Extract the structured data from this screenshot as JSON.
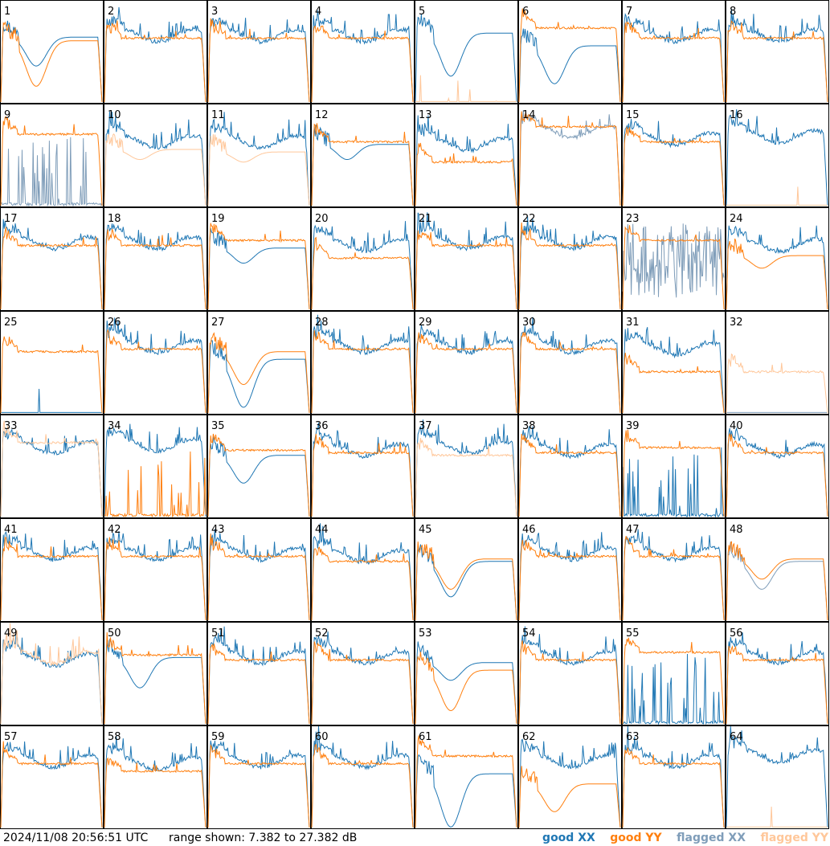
{
  "footer": {
    "timestamp": "2024/11/08 20:56:51 UTC",
    "range_text": "range shown: 7.382 to 27.382 dB"
  },
  "legend": [
    {
      "name": "good XX",
      "color": "#1f77b4"
    },
    {
      "name": "good YY",
      "color": "#ff7f0e"
    },
    {
      "name": "flagged XX",
      "color": "#7f9db9"
    },
    {
      "name": "flagged YY",
      "color": "#ffc79a"
    }
  ],
  "chart_data": {
    "type": "line",
    "ylim": [
      7.382,
      27.382
    ],
    "yunit": "dB",
    "grid": false,
    "legend_placement": "bottom-right",
    "panel_labels": [
      "1",
      "2",
      "3",
      "4",
      "5",
      "6",
      "7",
      "8",
      "9",
      "10",
      "11",
      "12",
      "13",
      "14",
      "15",
      "16",
      "17",
      "18",
      "19",
      "20",
      "21",
      "22",
      "23",
      "24",
      "25",
      "26",
      "27",
      "28",
      "29",
      "30",
      "31",
      "32",
      "33",
      "34",
      "35",
      "36",
      "37",
      "38",
      "39",
      "40",
      "41",
      "42",
      "43",
      "44",
      "45",
      "46",
      "47",
      "48",
      "49",
      "50",
      "51",
      "52",
      "53",
      "54",
      "55",
      "56",
      "57",
      "58",
      "59",
      "60",
      "61",
      "62",
      "63",
      "64"
    ],
    "panels": {
      "1": {
        "xx": {
          "state": "good",
          "shape": "dip",
          "level": 20.2,
          "dip": 14.5
        },
        "yy": {
          "state": "good",
          "shape": "dip",
          "level": 19.5,
          "dip": 10.5
        }
      },
      "5": {
        "xx": {
          "state": "good",
          "shape": "dip",
          "level": 21.0,
          "dip": 12.5
        },
        "yy": {
          "state": "flagged",
          "shape": "low"
        }
      },
      "6": {
        "xx": {
          "state": "good",
          "shape": "dip",
          "level": 18.5,
          "dip": 11.0
        },
        "yy": {
          "state": "good",
          "shape": "flat",
          "level": 22.0
        }
      },
      "9": {
        "xx": {
          "state": "flagged",
          "shape": "spiky_low"
        },
        "yy": {
          "state": "good",
          "shape": "flat",
          "level": 21.5
        }
      },
      "10": {
        "xx": {
          "state": "good",
          "shape": "bumpy",
          "level": 20.0
        },
        "yy": {
          "state": "flagged",
          "shape": "dip",
          "level": 18.5,
          "dip": 16.5
        }
      },
      "11": {
        "xx": {
          "state": "good",
          "shape": "bumpy",
          "level": 20.0
        },
        "yy": {
          "state": "flagged",
          "shape": "dip",
          "level": 18.0,
          "dip": 16.0
        }
      },
      "12": {
        "xx": {
          "state": "good",
          "shape": "dip",
          "level": 19.5,
          "dip": 16.5
        },
        "yy": {
          "state": "good",
          "shape": "flat",
          "level": 20.0
        }
      },
      "13": {
        "xx": {
          "state": "good",
          "shape": "bumpy",
          "level": 19.5
        },
        "yy": {
          "state": "good",
          "shape": "flat",
          "level": 16.0
        }
      },
      "14": {
        "xx": {
          "state": "flagged",
          "shape": "bumpy",
          "level": 22.0
        },
        "yy": {
          "state": "good",
          "shape": "flat",
          "level": 23.0
        }
      },
      "16": {
        "xx": {
          "state": "good",
          "shape": "bumpy",
          "level": 21.0
        },
        "yy": {
          "state": "flagged",
          "shape": "low"
        }
      },
      "19": {
        "xx": {
          "state": "good",
          "shape": "dip",
          "level": 19.5,
          "dip": 16.5
        },
        "yy": {
          "state": "good",
          "shape": "flat",
          "level": 21.0
        }
      },
      "20": {
        "xx": {
          "state": "good",
          "shape": "bumpy",
          "level": 20.0
        },
        "yy": {
          "state": "good",
          "shape": "flat",
          "level": 17.5
        }
      },
      "23": {
        "xx": {
          "state": "flagged",
          "shape": "spiky_high"
        },
        "yy": {
          "state": "good",
          "shape": "flat",
          "level": 21.0
        }
      },
      "24": {
        "xx": {
          "state": "good",
          "shape": "bumpy",
          "level": 20.0
        },
        "yy": {
          "state": "good",
          "shape": "dip",
          "level": 18.0,
          "dip": 15.5
        }
      },
      "25": {
        "xx": {
          "state": "good",
          "shape": "low"
        },
        "yy": {
          "state": "good",
          "shape": "flat",
          "level": 19.5
        }
      },
      "27": {
        "xx": {
          "state": "good",
          "shape": "dip",
          "level": 18.0,
          "dip": 8.5
        },
        "yy": {
          "state": "good",
          "shape": "dip",
          "level": 19.5,
          "dip": 13.0
        }
      },
      "31": {
        "xx": {
          "state": "good",
          "shape": "bumpy",
          "level": 20.0
        },
        "yy": {
          "state": "good",
          "shape": "flat",
          "level": 15.5
        }
      },
      "32": {
        "xx": {
          "state": "flagged",
          "shape": "low"
        },
        "yy": {
          "state": "flagged",
          "shape": "flat",
          "level": 15.5
        }
      },
      "33": {
        "xx": {
          "state": "good",
          "shape": "bumpy",
          "level": 21.0
        },
        "yy": {
          "state": "flagged",
          "shape": "flat",
          "level": 22.0
        }
      },
      "34": {
        "xx": {
          "state": "good",
          "shape": "bumpy",
          "level": 21.5
        },
        "yy": {
          "state": "good",
          "shape": "spiky_low"
        }
      },
      "35": {
        "xx": {
          "state": "good",
          "shape": "dip",
          "level": 19.5,
          "dip": 14.0
        },
        "yy": {
          "state": "good",
          "shape": "flat",
          "level": 20.5
        }
      },
      "37": {
        "xx": {
          "state": "good",
          "shape": "bumpy",
          "level": 21.0
        },
        "yy": {
          "state": "flagged",
          "shape": "flat",
          "level": 19.5
        }
      },
      "39": {
        "xx": {
          "state": "good",
          "shape": "spiky_low"
        },
        "yy": {
          "state": "good",
          "shape": "flat",
          "level": 21.0
        }
      },
      "44": {
        "xx": {
          "state": "good",
          "shape": "bumpy",
          "level": 20.0
        },
        "yy": {
          "state": "good",
          "shape": "flat",
          "level": 19.0
        }
      },
      "45": {
        "xx": {
          "state": "good",
          "shape": "dip",
          "level": 19.0,
          "dip": 12.0
        },
        "yy": {
          "state": "good",
          "shape": "dip",
          "level": 19.5,
          "dip": 13.5
        }
      },
      "48": {
        "xx": {
          "state": "flagged",
          "shape": "dip",
          "level": 19.0,
          "dip": 13.5
        },
        "yy": {
          "state": "good",
          "shape": "dip",
          "level": 19.5,
          "dip": 15.5
        }
      },
      "49": {
        "xx": {
          "state": "good",
          "shape": "bumpy",
          "level": 20.0
        },
        "yy": {
          "state": "flagged",
          "shape": "bumpy",
          "level": 20.5
        }
      },
      "50": {
        "xx": {
          "state": "good",
          "shape": "dip",
          "level": 20.5,
          "dip": 14.5
        },
        "yy": {
          "state": "good",
          "shape": "flat",
          "level": 21.0
        }
      },
      "53": {
        "xx": {
          "state": "good",
          "shape": "dip",
          "level": 19.5,
          "dip": 16.0
        },
        "yy": {
          "state": "good",
          "shape": "dip",
          "level": 18.0,
          "dip": 10.0
        }
      },
      "55": {
        "xx": {
          "state": "good",
          "shape": "spiky_low"
        },
        "yy": {
          "state": "good",
          "shape": "flat",
          "level": 21.5
        }
      },
      "58": {
        "xx": {
          "state": "good",
          "shape": "bumpy",
          "level": 20.0
        },
        "yy": {
          "state": "good",
          "shape": "flat",
          "level": 18.5
        }
      },
      "61": {
        "xx": {
          "state": "good",
          "shape": "dip",
          "level": 18.0,
          "dip": 7.5
        },
        "yy": {
          "state": "good",
          "shape": "flat",
          "level": 21.5
        }
      },
      "62": {
        "xx": {
          "state": "good",
          "shape": "bumpy",
          "level": 20.5
        },
        "yy": {
          "state": "good",
          "shape": "dip",
          "level": 16.0,
          "dip": 10.5
        }
      },
      "64": {
        "xx": {
          "state": "good",
          "shape": "bumpy",
          "level": 21.5
        },
        "yy": {
          "state": "flagged",
          "shape": "low"
        }
      }
    },
    "default_panel": {
      "xx": {
        "state": "good",
        "shape": "bumpy",
        "level": 20.5
      },
      "yy": {
        "state": "good",
        "shape": "flat",
        "level": 20.0
      }
    }
  }
}
